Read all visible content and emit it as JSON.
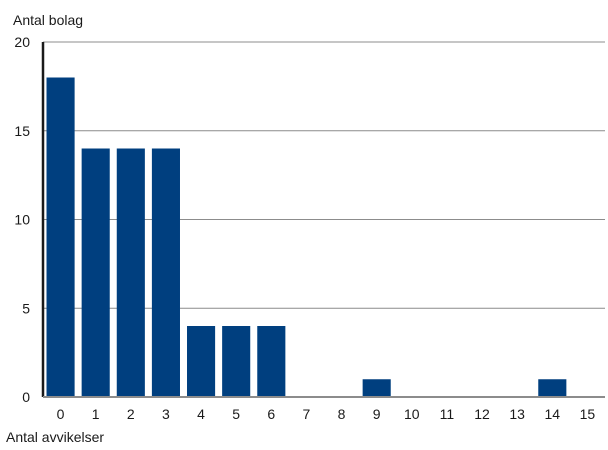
{
  "chart_data": {
    "type": "bar",
    "ylabel": "Antal bolag",
    "xlabel": "Antal avvikelser",
    "categories": [
      "0",
      "1",
      "2",
      "3",
      "4",
      "5",
      "6",
      "7",
      "8",
      "9",
      "10",
      "11",
      "12",
      "13",
      "14",
      "15"
    ],
    "values": [
      18,
      14,
      14,
      14,
      4,
      4,
      4,
      0,
      0,
      1,
      0,
      0,
      0,
      0,
      1,
      0
    ],
    "ylim": [
      0,
      20
    ],
    "yticks": [
      0,
      5,
      10,
      15,
      20
    ],
    "grid": true,
    "bar_color": "#003f7f",
    "grid_color": "#8c8c8c",
    "axis_color": "#1a1a1a"
  }
}
